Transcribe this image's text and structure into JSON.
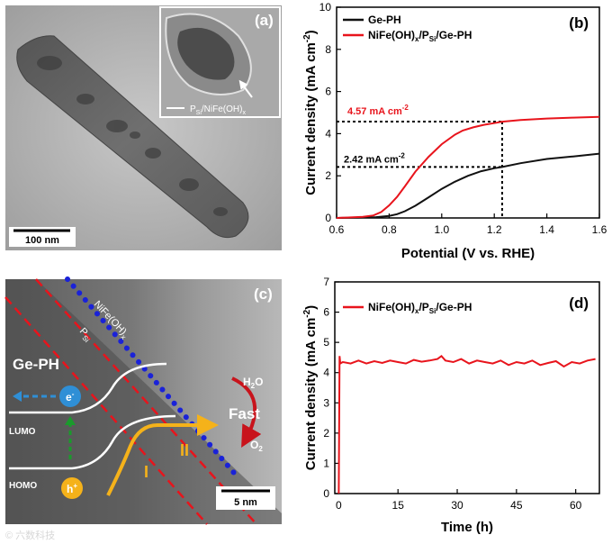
{
  "panels": {
    "a": {
      "letter": "(a)",
      "scale_bar": "100 nm",
      "inset_label_main": "P",
      "inset_label_sub": "Si",
      "inset_label_rest": "/NiFe(OH)",
      "inset_label_tail": "x"
    },
    "b": {
      "letter": "(b)",
      "annotation_red": "4.57 mA cm",
      "annotation_black": "2.42 mA cm",
      "annotation_sup": "-2"
    },
    "c": {
      "letter": "(c)",
      "scale_bar": "5 nm",
      "ge_ph": "Ge-PH",
      "lumo": "LUMO",
      "homo": "HOMO",
      "electron": "e",
      "electron_sup": "-",
      "hole": "h",
      "hole_sup": "+",
      "h2o_main": "H",
      "h2o_sub": "2",
      "h2o_tail": "O",
      "o2_main": "O",
      "o2_sub": "2",
      "fast": "Fast",
      "roman_one": "I",
      "roman_two": "II",
      "psi_main": "P",
      "psi_sub": "Si",
      "nife_main": "NiFe(OH)",
      "nife_sub": "x"
    },
    "d": {
      "letter": "(d)"
    }
  },
  "watermark": "© 六数科技",
  "colors": {
    "red": "#e8141c",
    "black": "#111111",
    "blue": "#1a22d8",
    "electron_blue": "#2f8fd6",
    "green": "#1a9a2c",
    "orange": "#f5b21a"
  },
  "chart_data": [
    {
      "id": "b",
      "type": "line",
      "xlabel": "Potential (V vs. RHE)",
      "ylabel": "Current density (mA cm",
      "ylabel_sup": "-2",
      "ylabel_tail": ")",
      "xlim": [
        0.6,
        1.6
      ],
      "ylim": [
        0,
        10
      ],
      "xticks": [
        0.6,
        0.8,
        1.0,
        1.2,
        1.4,
        1.6
      ],
      "yticks": [
        0,
        2,
        4,
        6,
        8,
        10
      ],
      "legend_placement": "top-left",
      "legend": [
        {
          "text": "Ge-PH",
          "color": "#111111"
        },
        {
          "main": "NiFe(OH)",
          "sub": "x",
          "rest": "/P",
          "sub2": "Si",
          "tail": "/Ge-PH",
          "color": "#e8141c"
        }
      ],
      "reference_x": 1.23,
      "reference_y": [
        4.57,
        2.42
      ],
      "series": [
        {
          "name": "Ge-PH",
          "color": "#111111",
          "x": [
            0.6,
            0.7,
            0.75,
            0.8,
            0.83,
            0.86,
            0.9,
            0.95,
            1.0,
            1.05,
            1.1,
            1.15,
            1.2,
            1.23,
            1.3,
            1.4,
            1.5,
            1.6
          ],
          "y": [
            0.0,
            0.02,
            0.04,
            0.1,
            0.18,
            0.32,
            0.58,
            0.98,
            1.38,
            1.72,
            2.0,
            2.22,
            2.36,
            2.42,
            2.6,
            2.8,
            2.92,
            3.05
          ]
        },
        {
          "name": "NiFe(OH)x/PSi/Ge-PH",
          "color": "#e8141c",
          "x": [
            0.6,
            0.7,
            0.74,
            0.77,
            0.8,
            0.83,
            0.86,
            0.9,
            0.95,
            1.0,
            1.05,
            1.08,
            1.12,
            1.16,
            1.2,
            1.23,
            1.3,
            1.4,
            1.5,
            1.6
          ],
          "y": [
            0.0,
            0.05,
            0.12,
            0.28,
            0.6,
            1.0,
            1.5,
            2.2,
            2.9,
            3.5,
            3.95,
            4.15,
            4.3,
            4.42,
            4.5,
            4.57,
            4.65,
            4.72,
            4.76,
            4.8
          ]
        }
      ]
    },
    {
      "id": "d",
      "type": "line",
      "xlabel": "Time (h)",
      "ylabel": "Current density (mA cm",
      "ylabel_sup": "-2",
      "ylabel_tail": ")",
      "xlim": [
        -1,
        66
      ],
      "ylim": [
        0,
        7
      ],
      "xticks": [
        0,
        15,
        30,
        45,
        60
      ],
      "yticks": [
        0,
        1,
        2,
        3,
        4,
        5,
        6,
        7
      ],
      "legend_placement": "top-left",
      "legend": [
        {
          "main": "NiFe(OH)",
          "sub": "x",
          "rest": "/P",
          "sub2": "Si",
          "tail": "/Ge-PH",
          "color": "#e8141c"
        }
      ],
      "series": [
        {
          "name": "NiFe(OH)x/PSi/Ge-PH",
          "color": "#e8141c",
          "x": [
            0,
            0.2,
            0.4,
            1,
            3,
            5,
            7,
            9,
            11,
            13,
            15,
            17,
            19,
            21,
            23,
            25,
            26,
            27,
            29,
            31,
            33,
            35,
            37,
            39,
            41,
            43,
            45,
            47,
            49,
            51,
            53,
            55,
            57,
            59,
            61,
            63,
            65
          ],
          "y": [
            0,
            4.55,
            4.3,
            4.35,
            4.3,
            4.4,
            4.3,
            4.38,
            4.32,
            4.4,
            4.35,
            4.3,
            4.42,
            4.36,
            4.4,
            4.45,
            4.55,
            4.4,
            4.35,
            4.45,
            4.3,
            4.4,
            4.35,
            4.3,
            4.4,
            4.25,
            4.35,
            4.3,
            4.4,
            4.25,
            4.32,
            4.38,
            4.2,
            4.35,
            4.3,
            4.4,
            4.45
          ]
        }
      ]
    }
  ]
}
